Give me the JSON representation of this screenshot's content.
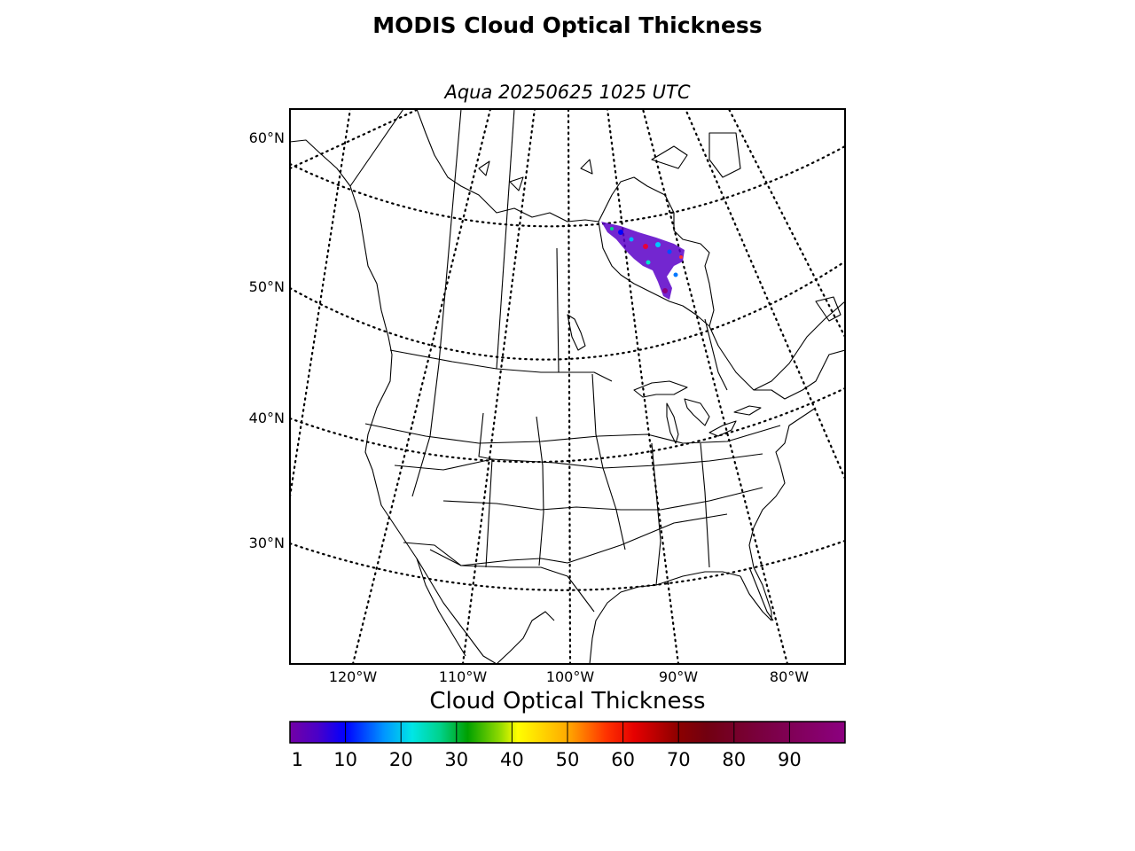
{
  "figure": {
    "title": "MODIS Cloud Optical Thickness",
    "subtitle": "Aqua 20250625 1025 UTC"
  },
  "map": {
    "projection": "lambert-conformal",
    "region": "North America (continental US and southern Canada)",
    "lat_labels": [
      "60°N",
      "50°N",
      "40°N",
      "30°N"
    ],
    "lon_labels": [
      "120°W",
      "110°W",
      "100°W",
      "90°W",
      "80°W"
    ],
    "graticule_style": "dotted",
    "cloud_data_region": "Hudson Bay / northern Ontario–Manitoba (small scattered patch)"
  },
  "colorbar": {
    "label": "Cloud Optical Thickness",
    "ticks": [
      "1",
      "10",
      "20",
      "30",
      "40",
      "50",
      "60",
      "70",
      "80",
      "90"
    ],
    "range": [
      0,
      100
    ],
    "colormap": [
      [
        0,
        "#7300a5"
      ],
      [
        5,
        "#4a00c8"
      ],
      [
        10,
        "#0000ff"
      ],
      [
        17,
        "#0096ff"
      ],
      [
        22,
        "#00e6e6"
      ],
      [
        27,
        "#00d28c"
      ],
      [
        32,
        "#00a000"
      ],
      [
        38,
        "#96dc00"
      ],
      [
        41,
        "#ffff00"
      ],
      [
        50,
        "#ffaa00"
      ],
      [
        57,
        "#ff3200"
      ],
      [
        62,
        "#e60000"
      ],
      [
        70,
        "#8c0000"
      ],
      [
        75,
        "#720010"
      ],
      [
        85,
        "#7a0040"
      ],
      [
        100,
        "#8c0080"
      ]
    ]
  }
}
